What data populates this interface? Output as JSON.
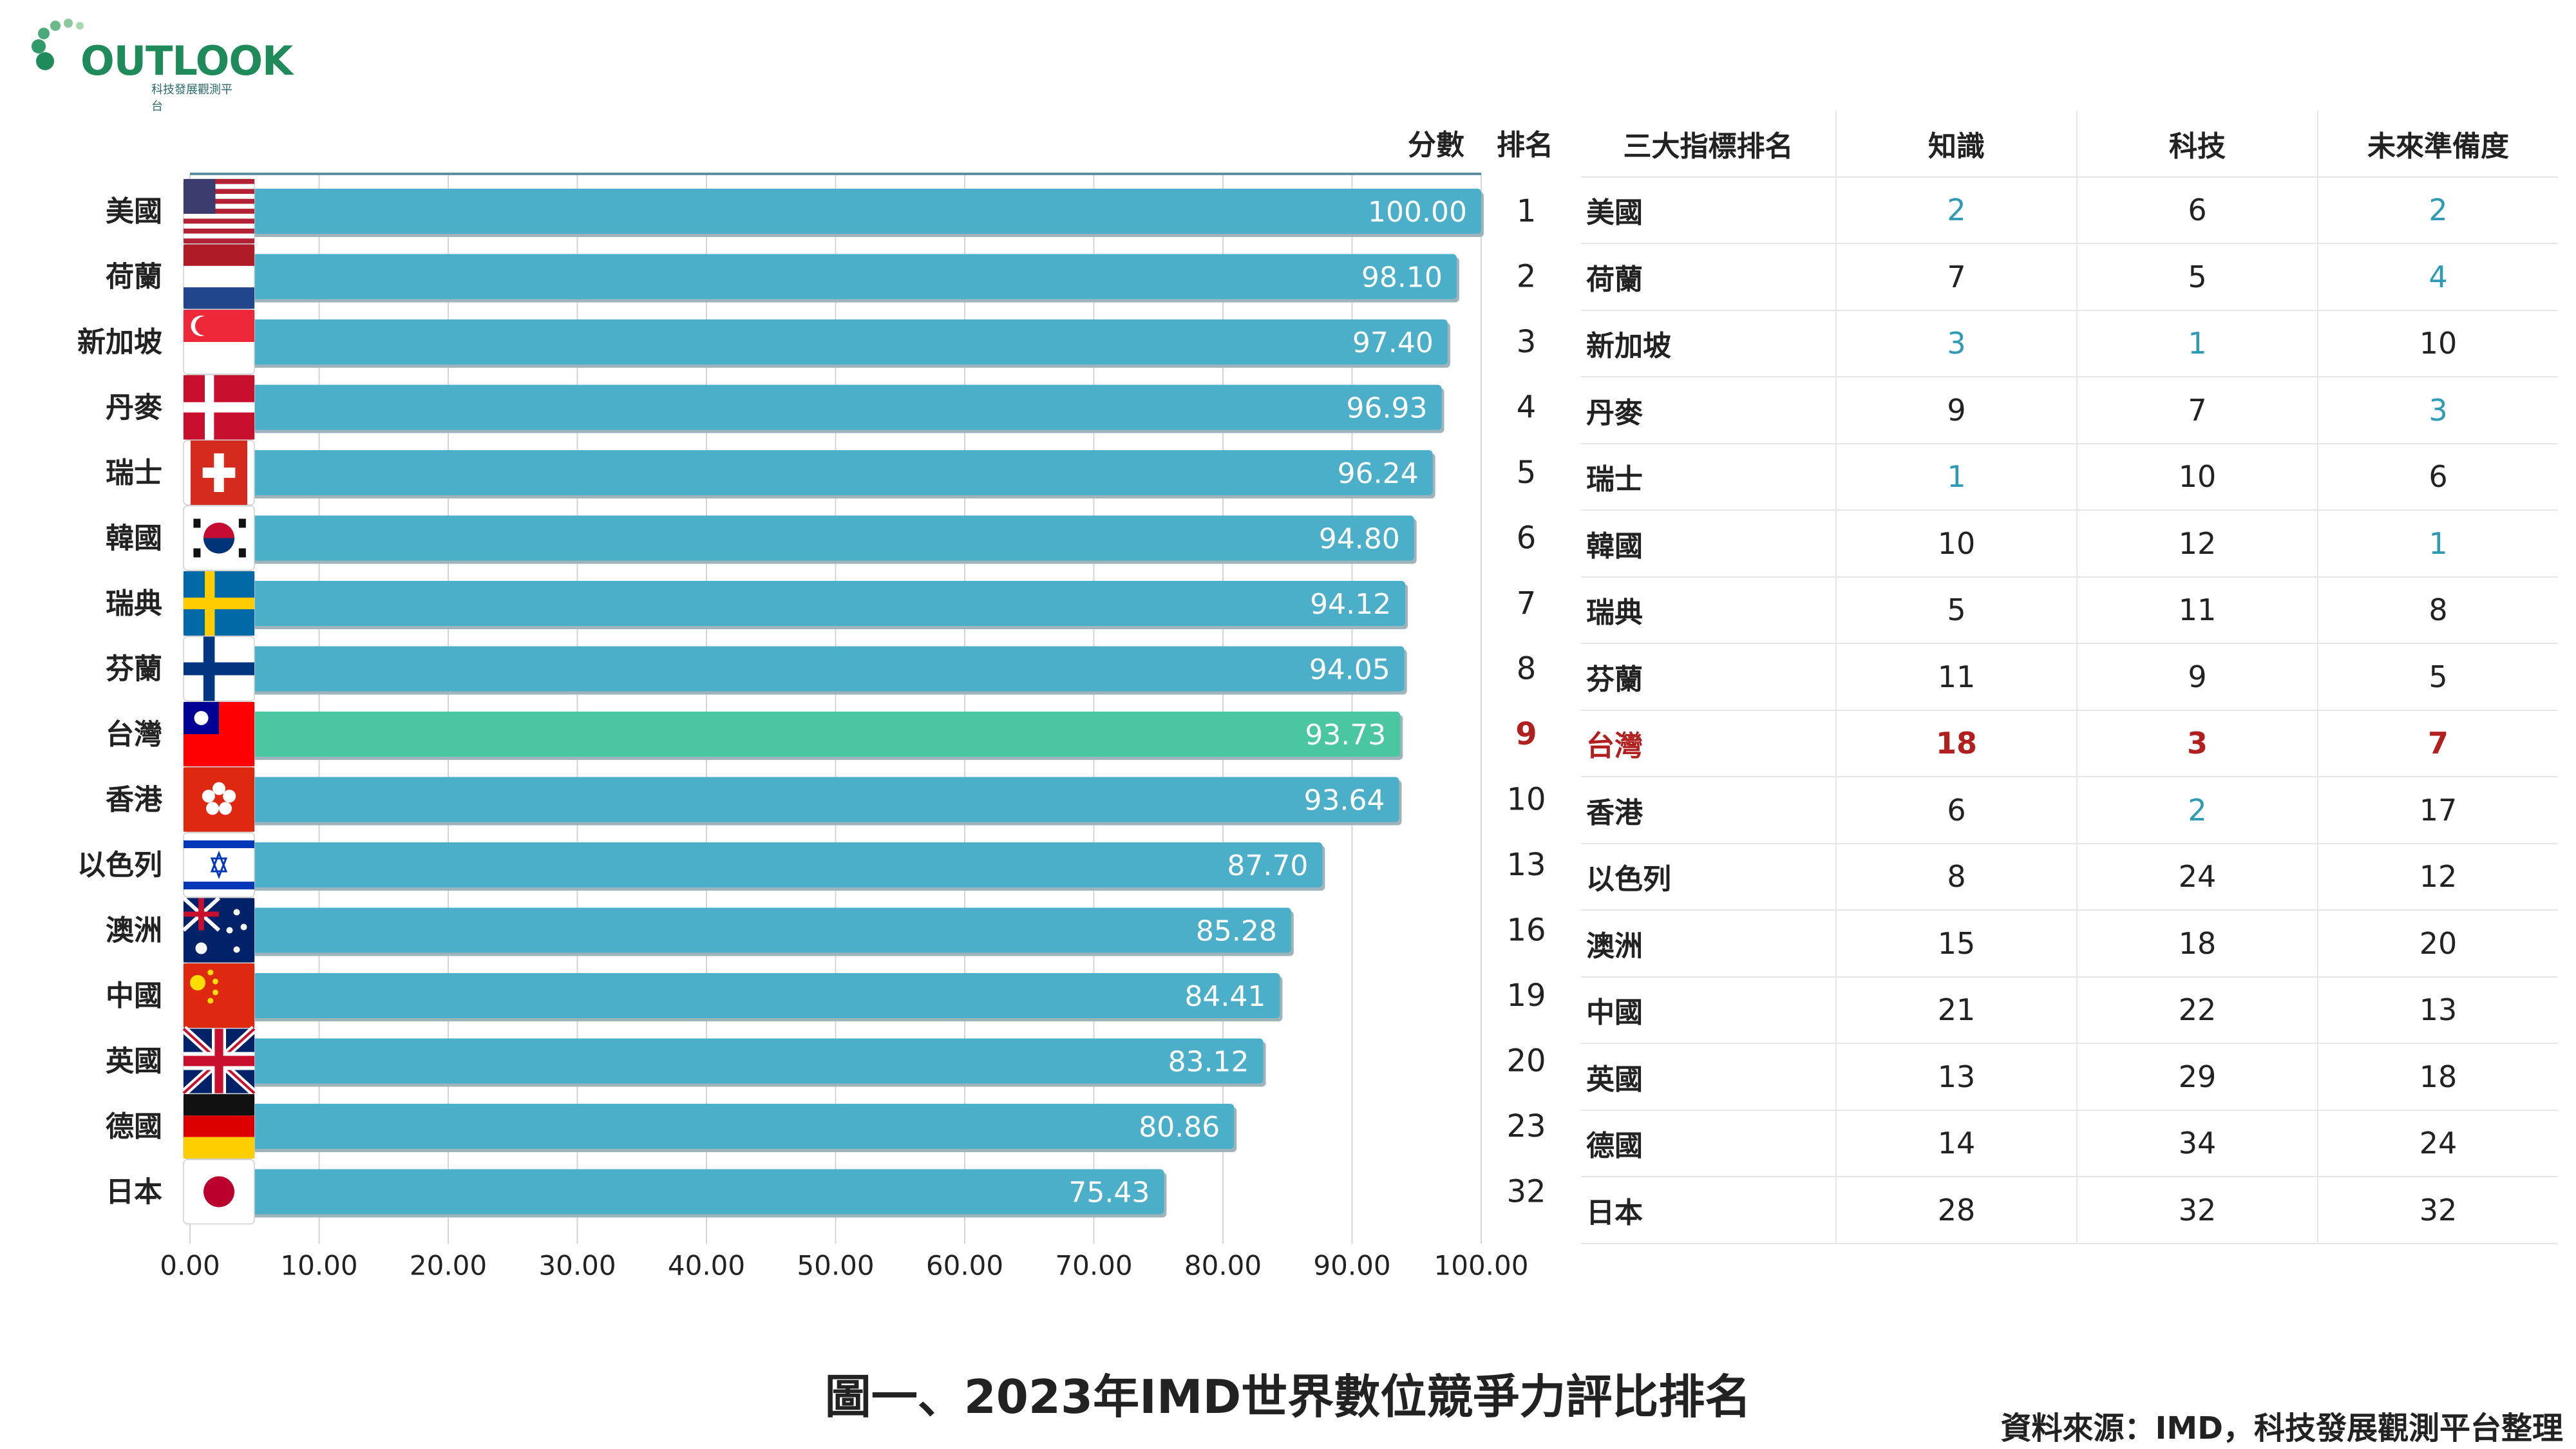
{
  "logo": {
    "text": "OUTLOOK",
    "sub": "科技發展觀測平台"
  },
  "headers": {
    "score": "分數",
    "rank": "排名"
  },
  "table_headers": [
    "三大指標排名",
    "知識",
    "科技",
    "未來準備度"
  ],
  "title": "圖一、2023年IMD世界數位競爭力評比排名",
  "source": "資料來源：IMD，科技發展觀測平台整理",
  "colors": {
    "bar": "#4bafc9",
    "highlight_bar": "#4ac6a0",
    "best": "#2e9bb5",
    "highlight_text": "#b21f1f",
    "axis": "#5b8fa0",
    "text": "#222222"
  },
  "chart_data": {
    "type": "bar",
    "orientation": "horizontal",
    "categories": [
      "美國",
      "荷蘭",
      "新加坡",
      "丹麥",
      "瑞士",
      "韓國",
      "瑞典",
      "芬蘭",
      "台灣",
      "香港",
      "以色列",
      "澳洲",
      "中國",
      "英國",
      "德國",
      "日本"
    ],
    "values": [
      100.0,
      98.1,
      97.4,
      96.93,
      96.24,
      94.8,
      94.12,
      94.05,
      93.73,
      93.64,
      87.7,
      85.28,
      84.41,
      83.12,
      80.86,
      75.43
    ],
    "value_labels": [
      "100.00",
      "98.10",
      "97.40",
      "96.93",
      "96.24",
      "94.80",
      "94.12",
      "94.05",
      "93.73",
      "93.64",
      "87.70",
      "85.28",
      "84.41",
      "83.12",
      "80.86",
      "75.43"
    ],
    "ranks": [
      "1",
      "2",
      "3",
      "4",
      "5",
      "6",
      "7",
      "8",
      "9",
      "10",
      "13",
      "16",
      "19",
      "20",
      "23",
      "32"
    ],
    "highlight": "台灣",
    "xlim": [
      0,
      100
    ],
    "xticks": [
      "0.00",
      "10.00",
      "20.00",
      "30.00",
      "40.00",
      "50.00",
      "60.00",
      "70.00",
      "80.00",
      "90.00",
      "100.00"
    ],
    "grid": true,
    "flags": [
      "us-flag",
      "netherlands-flag",
      "singapore-flag",
      "denmark-flag",
      "switzerland-flag",
      "korea-flag",
      "sweden-flag",
      "finland-flag",
      "taiwan-flag",
      "hongkong-flag",
      "israel-flag",
      "australia-flag",
      "china-flag",
      "uk-flag",
      "germany-flag",
      "japan-flag"
    ]
  },
  "table_rows": [
    {
      "country": "美國",
      "knowledge": "2",
      "technology": "6",
      "future": "2"
    },
    {
      "country": "荷蘭",
      "knowledge": "7",
      "technology": "5",
      "future": "4"
    },
    {
      "country": "新加坡",
      "knowledge": "3",
      "technology": "1",
      "future": "10"
    },
    {
      "country": "丹麥",
      "knowledge": "9",
      "technology": "7",
      "future": "3"
    },
    {
      "country": "瑞士",
      "knowledge": "1",
      "technology": "10",
      "future": "6"
    },
    {
      "country": "韓國",
      "knowledge": "10",
      "technology": "12",
      "future": "1"
    },
    {
      "country": "瑞典",
      "knowledge": "5",
      "technology": "11",
      "future": "8"
    },
    {
      "country": "芬蘭",
      "knowledge": "11",
      "technology": "9",
      "future": "5"
    },
    {
      "country": "台灣",
      "knowledge": "18",
      "technology": "3",
      "future": "7"
    },
    {
      "country": "香港",
      "knowledge": "6",
      "technology": "2",
      "future": "17"
    },
    {
      "country": "以色列",
      "knowledge": "8",
      "technology": "24",
      "future": "12"
    },
    {
      "country": "澳洲",
      "knowledge": "15",
      "technology": "18",
      "future": "20"
    },
    {
      "country": "中國",
      "knowledge": "21",
      "technology": "22",
      "future": "13"
    },
    {
      "country": "英國",
      "knowledge": "13",
      "technology": "29",
      "future": "18"
    },
    {
      "country": "德國",
      "knowledge": "14",
      "technology": "34",
      "future": "24"
    },
    {
      "country": "日本",
      "knowledge": "28",
      "technology": "32",
      "future": "32"
    }
  ]
}
